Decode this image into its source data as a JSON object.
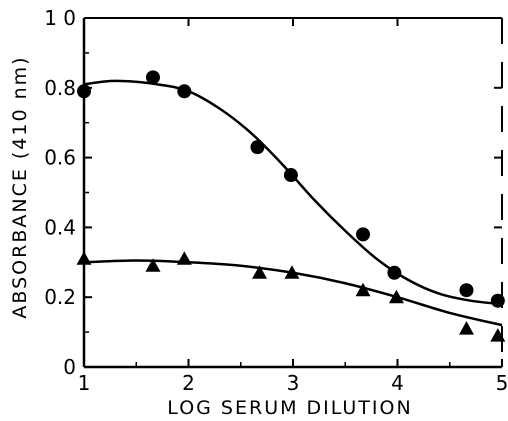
{
  "chart_data": {
    "type": "scatter",
    "xlabel": "LOG SERUM DILUTION",
    "ylabel": "ABSORBANCE (410 nm)",
    "xlim": [
      1,
      5
    ],
    "ylim": [
      0,
      1.0
    ],
    "x_ticks": [
      1,
      2,
      3,
      4,
      5
    ],
    "y_ticks": [
      0,
      0.2,
      0.4,
      0.6,
      0.8,
      1.0
    ],
    "x_tick_labels": [
      "1",
      "2",
      "3",
      "4",
      "5"
    ],
    "y_tick_labels": [
      "0",
      "0.2",
      "0.4",
      "0.6",
      "0.8",
      "1 0"
    ],
    "grid": false,
    "series": [
      {
        "marker": "circle",
        "points": [
          {
            "x": 1.0,
            "y": 0.79
          },
          {
            "x": 1.66,
            "y": 0.83
          },
          {
            "x": 1.96,
            "y": 0.79
          },
          {
            "x": 2.66,
            "y": 0.63
          },
          {
            "x": 2.98,
            "y": 0.55
          },
          {
            "x": 3.67,
            "y": 0.38
          },
          {
            "x": 3.97,
            "y": 0.27
          },
          {
            "x": 4.66,
            "y": 0.22
          },
          {
            "x": 4.96,
            "y": 0.19
          }
        ],
        "fit_curve": [
          {
            "x": 1.0,
            "y": 0.81
          },
          {
            "x": 1.3,
            "y": 0.82
          },
          {
            "x": 1.7,
            "y": 0.81
          },
          {
            "x": 2.0,
            "y": 0.79
          },
          {
            "x": 2.3,
            "y": 0.74
          },
          {
            "x": 2.6,
            "y": 0.67
          },
          {
            "x": 2.9,
            "y": 0.58
          },
          {
            "x": 3.2,
            "y": 0.48
          },
          {
            "x": 3.5,
            "y": 0.39
          },
          {
            "x": 3.8,
            "y": 0.31
          },
          {
            "x": 4.1,
            "y": 0.25
          },
          {
            "x": 4.4,
            "y": 0.21
          },
          {
            "x": 4.7,
            "y": 0.19
          },
          {
            "x": 5.0,
            "y": 0.18
          }
        ]
      },
      {
        "marker": "triangle",
        "points": [
          {
            "x": 1.0,
            "y": 0.31
          },
          {
            "x": 1.66,
            "y": 0.29
          },
          {
            "x": 1.96,
            "y": 0.31
          },
          {
            "x": 2.68,
            "y": 0.27
          },
          {
            "x": 2.99,
            "y": 0.27
          },
          {
            "x": 3.67,
            "y": 0.22
          },
          {
            "x": 3.99,
            "y": 0.2
          },
          {
            "x": 4.66,
            "y": 0.11
          },
          {
            "x": 4.96,
            "y": 0.09
          }
        ],
        "fit_curve": [
          {
            "x": 1.0,
            "y": 0.3
          },
          {
            "x": 1.5,
            "y": 0.305
          },
          {
            "x": 2.0,
            "y": 0.3
          },
          {
            "x": 2.5,
            "y": 0.29
          },
          {
            "x": 3.0,
            "y": 0.27
          },
          {
            "x": 3.5,
            "y": 0.24
          },
          {
            "x": 4.0,
            "y": 0.2
          },
          {
            "x": 4.5,
            "y": 0.155
          },
          {
            "x": 5.0,
            "y": 0.12
          }
        ]
      }
    ]
  }
}
